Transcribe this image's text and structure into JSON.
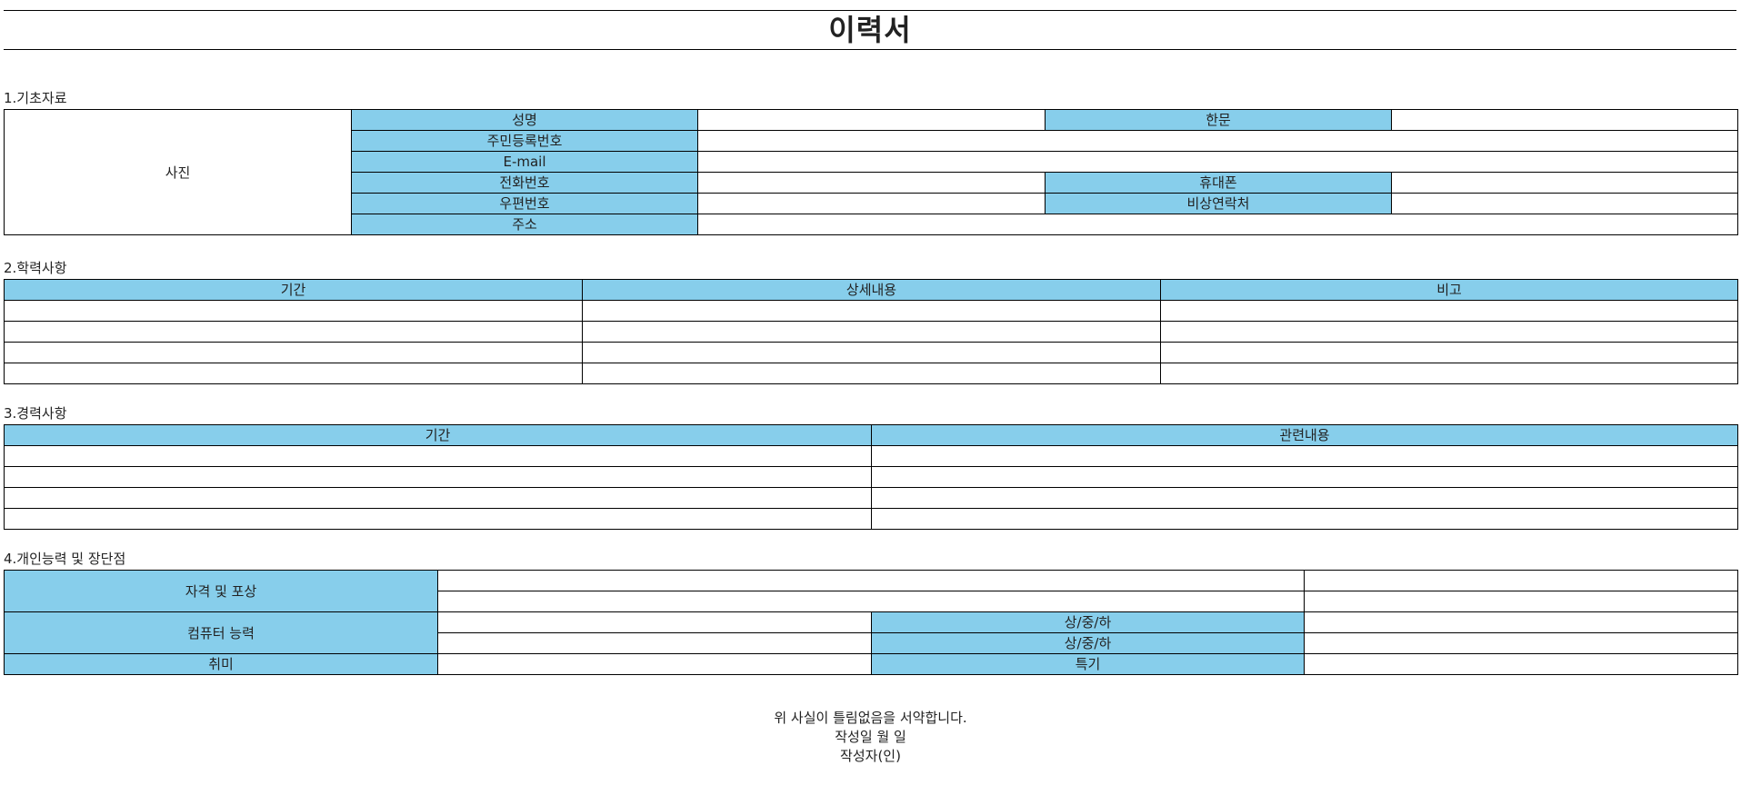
{
  "title": "이력서",
  "basic": {
    "section_label": "1.기초자료",
    "photo_label": "사진",
    "name_label": "성명",
    "hanja_label": "한문",
    "rrn_label": "주민등록번호",
    "email_label": "E-mail",
    "phone_label": "전화번호",
    "mobile_label": "휴대폰",
    "zip_label": "우편번호",
    "emergency_label": "비상연락처",
    "address_label": "주소"
  },
  "education": {
    "section_label": "2.학력사항",
    "headers": [
      "기간",
      "상세내용",
      "비고"
    ]
  },
  "career": {
    "section_label": "3.경력사항",
    "headers": [
      "기간",
      "관련내용"
    ]
  },
  "ability": {
    "section_label": "4.개인능력 및 장단점",
    "cert_label": "자격 및 포상",
    "computer_label": "컴퓨터 능력",
    "level_label_1": "상/중/하",
    "level_label_2": "상/중/하",
    "hobby_label": "취미",
    "specialty_label": "특기"
  },
  "footer": {
    "pledge": "위 사실이 틀림없음을 서약합니다.",
    "date_line": "작성일 월 일",
    "writer_line": "작성자(인)"
  }
}
